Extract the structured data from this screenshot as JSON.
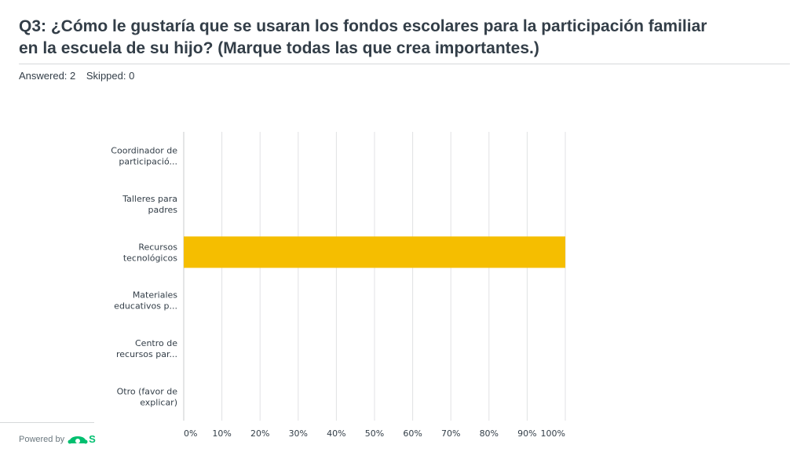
{
  "question": {
    "title": "Q3: ¿Cómo le gustaría que se usaran los fondos escolares para la participación familiar en la escuela de su hijo? (Marque todas las que crea importantes.)",
    "answered": "Answered: 2",
    "skipped": "Skipped: 0"
  },
  "footer": {
    "powered_by": "Powered by",
    "logo_letter": "S",
    "logo_icon": "surveymonkey-logo-icon"
  },
  "colors": {
    "bar": "#f5be00",
    "grid": "#e0e2e4",
    "axis": "#c8cbce",
    "text": "#333e48"
  },
  "chart_data": {
    "type": "bar",
    "orientation": "horizontal",
    "categories": [
      [
        "Coordinador de",
        "participació..."
      ],
      [
        "Talleres para",
        "padres"
      ],
      [
        "Recursos",
        "tecnológicos"
      ],
      [
        "Materiales",
        "educativos p..."
      ],
      [
        "Centro de",
        "recursos par..."
      ],
      [
        "Otro (favor de",
        "explicar)"
      ]
    ],
    "values": [
      0,
      0,
      100,
      0,
      0,
      0
    ],
    "xlim": [
      0,
      100
    ],
    "xticks": [
      0,
      10,
      20,
      30,
      40,
      50,
      60,
      70,
      80,
      90,
      100
    ],
    "xtick_labels": [
      "0%",
      "10%",
      "20%",
      "30%",
      "40%",
      "50%",
      "60%",
      "70%",
      "80%",
      "90%",
      "100%"
    ],
    "grid": true,
    "title": "",
    "xlabel": "",
    "ylabel": ""
  }
}
